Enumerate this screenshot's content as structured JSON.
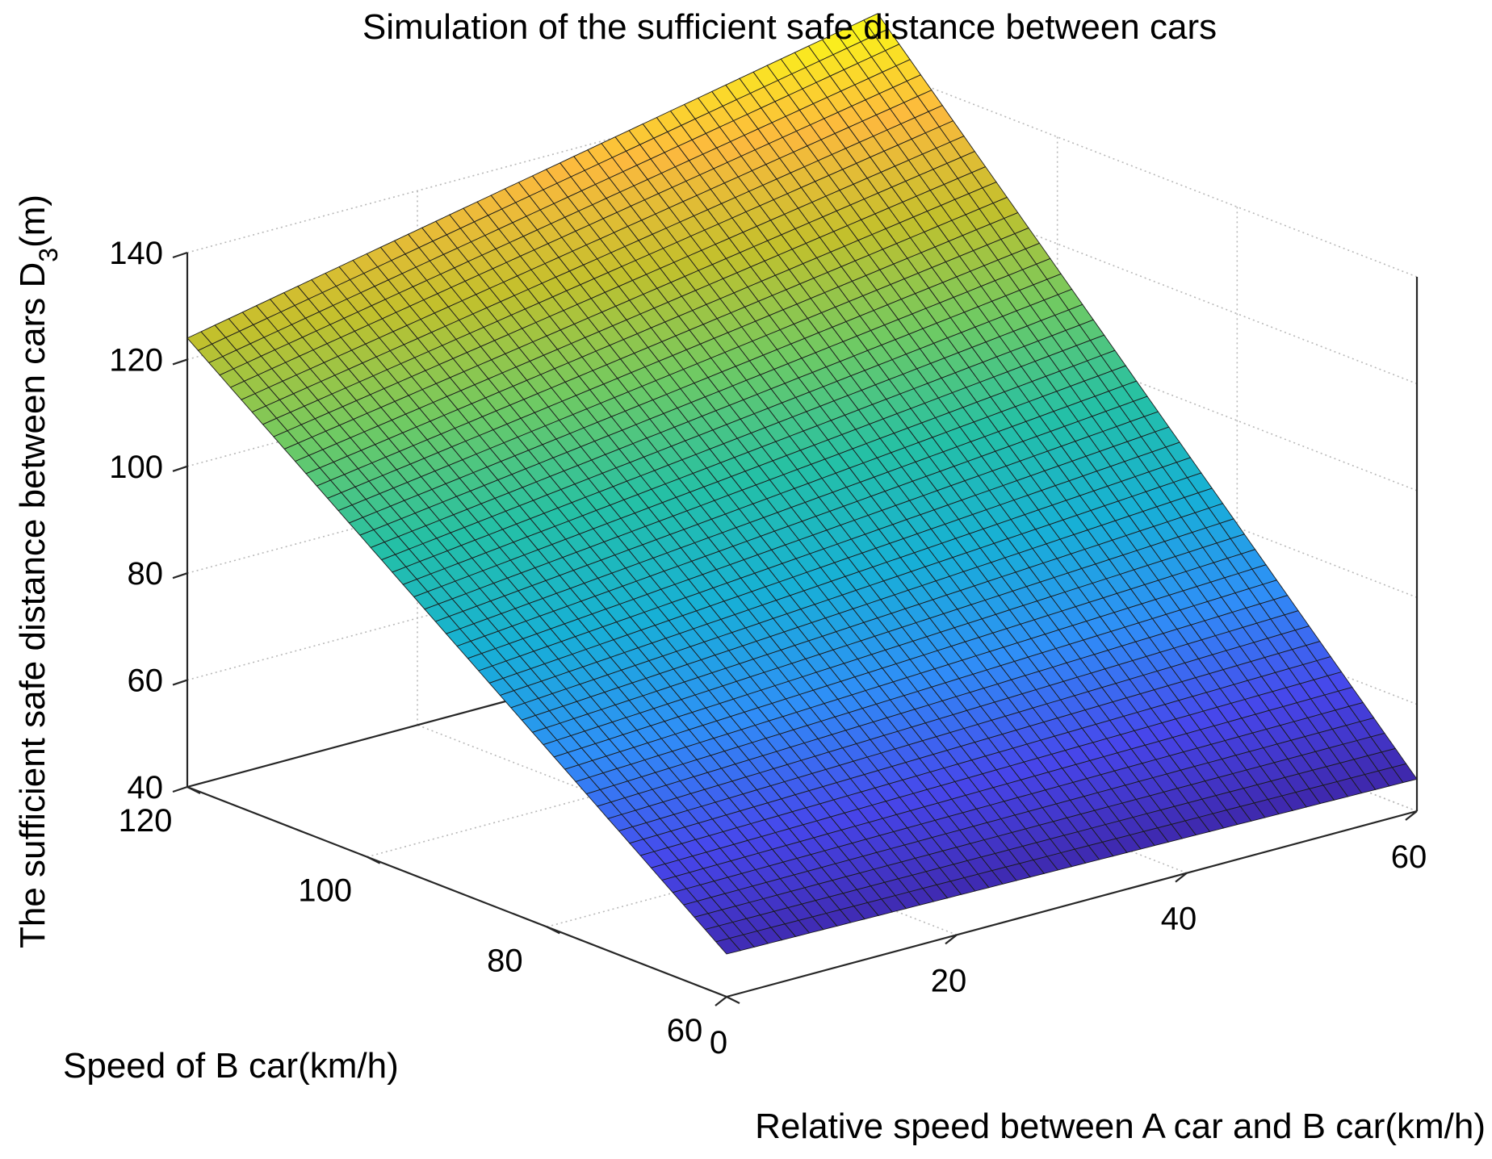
{
  "chart_data": {
    "type": "surface",
    "title": "Simulation of the sufficient safe distance between cars",
    "xlabel": "Relative speed between A car and B car(km/h)",
    "ylabel": "Speed of B car(km/h)",
    "zlabel_main": "The sufficient safe distance between cars D",
    "zlabel_sub": "3",
    "zlabel_unit": "(m)",
    "x_ticks": [
      "0",
      "20",
      "40",
      "60"
    ],
    "y_ticks": [
      "60",
      "80",
      "100",
      "120"
    ],
    "z_ticks": [
      "40",
      "60",
      "80",
      "100",
      "120",
      "140"
    ],
    "xlim": [
      0,
      60
    ],
    "ylim": [
      60,
      120
    ],
    "zlim": [
      40,
      140
    ],
    "corner_values": [
      {
        "x": 0,
        "y": 60,
        "z": 48
      },
      {
        "x": 60,
        "y": 60,
        "z": 46
      },
      {
        "x": 0,
        "y": 120,
        "z": 124
      },
      {
        "x": 60,
        "y": 120,
        "z": 150
      }
    ],
    "grid_points": 51,
    "colormap": [
      "#3e26a8",
      "#4746eb",
      "#2f8ff7",
      "#17b0d6",
      "#24c0a6",
      "#6fca63",
      "#c3c02c",
      "#fcb93e",
      "#f9fb15"
    ],
    "grid": true
  }
}
